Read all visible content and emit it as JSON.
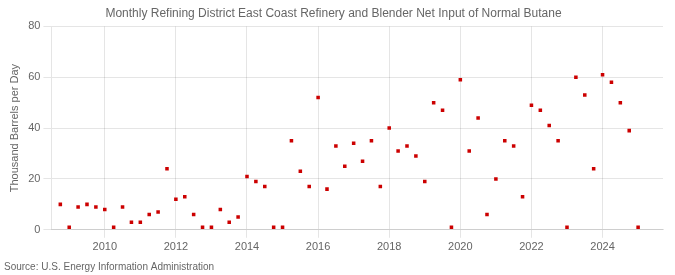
{
  "chart_data": {
    "type": "scatter",
    "title": "Monthly Refining District East Coast Refinery and Blender Net Input of Normal Butane",
    "ylabel": "Thousand Barrels per Day",
    "source": "Source: U.S. Energy Information Administration",
    "color": "#cc0000",
    "marker": "square",
    "grid": true,
    "xlim": [
      2008.5,
      2025.7
    ],
    "xticks": [
      2010,
      2012,
      2014,
      2016,
      2018,
      2020,
      2022,
      2024
    ],
    "ylim": [
      0,
      80
    ],
    "yticks": [
      0,
      20,
      40,
      60,
      80
    ],
    "x": [
      2008.75,
      2009.0,
      2009.25,
      2009.5,
      2009.75,
      2010.0,
      2010.25,
      2010.5,
      2010.75,
      2011.0,
      2011.25,
      2011.5,
      2011.75,
      2012.0,
      2012.25,
      2012.5,
      2012.75,
      2013.0,
      2013.25,
      2013.5,
      2013.75,
      2014.0,
      2014.25,
      2014.5,
      2014.75,
      2015.0,
      2015.25,
      2015.5,
      2015.75,
      2016.0,
      2016.25,
      2016.5,
      2016.75,
      2017.0,
      2017.25,
      2017.5,
      2017.75,
      2018.0,
      2018.25,
      2018.5,
      2018.75,
      2019.0,
      2019.25,
      2019.5,
      2019.75,
      2020.0,
      2020.25,
      2020.5,
      2020.75,
      2021.0,
      2021.25,
      2021.5,
      2021.75,
      2022.0,
      2022.25,
      2022.5,
      2022.75,
      2023.0,
      2023.25,
      2023.5,
      2023.75,
      2024.0,
      2024.25,
      2024.5,
      2024.75,
      2025.0
    ],
    "values": [
      10,
      1,
      9,
      10,
      9,
      8,
      1,
      9,
      3,
      3,
      6,
      7,
      24,
      12,
      13,
      6,
      1,
      1,
      8,
      3,
      5,
      21,
      19,
      17,
      1,
      1,
      35,
      23,
      17,
      52,
      16,
      33,
      25,
      34,
      27,
      35,
      17,
      40,
      31,
      33,
      29,
      19,
      50,
      47,
      1,
      59,
      31,
      44,
      6,
      20,
      35,
      33,
      13,
      49,
      47,
      41,
      35,
      1,
      60,
      53,
      24,
      61,
      58,
      50,
      39,
      1
    ]
  }
}
